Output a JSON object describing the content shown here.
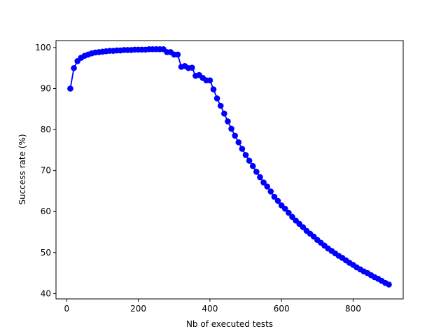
{
  "chart_data": {
    "type": "line",
    "title": "",
    "xlabel": "Nb of executed tests",
    "ylabel": "Success rate (%)",
    "xlim": [
      -30,
      940
    ],
    "ylim": [
      38.7,
      101.7
    ],
    "xticks": [
      0,
      200,
      400,
      600,
      800
    ],
    "yticks": [
      40,
      50,
      60,
      70,
      80,
      90,
      100
    ],
    "grid": false,
    "legend": "none",
    "series": [
      {
        "color": "#0000ff",
        "marker": "circle",
        "x": [
          10,
          20,
          30,
          40,
          50,
          60,
          70,
          80,
          90,
          100,
          110,
          120,
          130,
          140,
          150,
          160,
          170,
          180,
          190,
          200,
          210,
          220,
          230,
          240,
          250,
          260,
          270,
          280,
          290,
          300,
          310,
          320,
          330,
          340,
          350,
          360,
          370,
          380,
          390,
          400,
          410,
          420,
          430,
          440,
          450,
          460,
          470,
          480,
          490,
          500,
          510,
          520,
          530,
          540,
          550,
          560,
          570,
          580,
          590,
          600,
          610,
          620,
          630,
          640,
          650,
          660,
          670,
          680,
          690,
          700,
          710,
          720,
          730,
          740,
          750,
          760,
          770,
          780,
          790,
          800,
          810,
          820,
          830,
          840,
          850,
          860,
          870,
          880,
          890,
          900
        ],
        "y": [
          90.0,
          95.0,
          96.7,
          97.5,
          98.0,
          98.3,
          98.6,
          98.8,
          98.9,
          99.0,
          99.1,
          99.2,
          99.2,
          99.3,
          99.3,
          99.4,
          99.4,
          99.4,
          99.5,
          99.5,
          99.5,
          99.5,
          99.6,
          99.6,
          99.6,
          99.6,
          99.6,
          98.9,
          98.9,
          98.3,
          98.3,
          95.3,
          95.5,
          95.0,
          95.1,
          93.1,
          93.3,
          92.6,
          92.0,
          92.0,
          89.8,
          87.6,
          85.8,
          83.9,
          82.0,
          80.2,
          78.5,
          76.9,
          75.3,
          73.8,
          72.4,
          71.1,
          69.7,
          68.4,
          67.1,
          66.1,
          64.9,
          63.6,
          62.6,
          61.5,
          60.7,
          59.7,
          58.7,
          57.8,
          57.0,
          56.2,
          55.3,
          54.6,
          53.9,
          53.1,
          52.4,
          51.7,
          51.0,
          50.4,
          49.8,
          49.2,
          48.7,
          48.1,
          47.5,
          47.0,
          46.4,
          45.9,
          45.4,
          45.0,
          44.5,
          44.0,
          43.6,
          43.1,
          42.6,
          42.2
        ]
      }
    ]
  }
}
